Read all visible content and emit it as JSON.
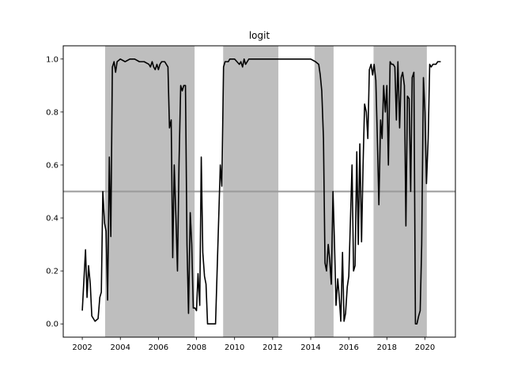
{
  "chart_data": {
    "type": "line",
    "title": "logit",
    "xlabel": "",
    "ylabel": "",
    "xlim": [
      2001.0,
      2021.6
    ],
    "ylim": [
      -0.05,
      1.05
    ],
    "x_ticks": [
      2002,
      2004,
      2006,
      2008,
      2010,
      2012,
      2014,
      2016,
      2018,
      2020
    ],
    "y_ticks": [
      0.0,
      0.2,
      0.4,
      0.6,
      0.8,
      1.0
    ],
    "y_tick_labels": [
      "0.0",
      "0.2",
      "0.4",
      "0.6",
      "0.8",
      "1.0"
    ],
    "threshold": 0.5,
    "threshold_color": "#999999",
    "line_color": "#000000",
    "shade_color": "#bebebe",
    "shaded_periods": [
      [
        2003.2,
        2007.9
      ],
      [
        2009.4,
        2012.3
      ],
      [
        2014.2,
        2015.2
      ],
      [
        2017.3,
        2020.1
      ]
    ],
    "series": [
      {
        "x": [
          2002.0,
          2002.17,
          2002.25,
          2002.33,
          2002.42,
          2002.5,
          2002.67,
          2002.83,
          2002.92,
          2003.0,
          2003.08,
          2003.17,
          2003.25,
          2003.33,
          2003.42,
          2003.5,
          2003.58,
          2003.67,
          2003.75,
          2003.83,
          2004.0,
          2004.25,
          2004.5,
          2004.75,
          2005.0,
          2005.25,
          2005.5,
          2005.58,
          2005.67,
          2005.75,
          2005.83,
          2005.92,
          2006.0,
          2006.08,
          2006.17,
          2006.33,
          2006.5,
          2006.58,
          2006.67,
          2006.75,
          2006.83,
          2006.92,
          2007.0,
          2007.08,
          2007.17,
          2007.25,
          2007.33,
          2007.42,
          2007.5,
          2007.58,
          2007.67,
          2007.75,
          2007.83,
          2007.92,
          2008.0,
          2008.08,
          2008.17,
          2008.25,
          2008.33,
          2008.42,
          2008.5,
          2008.58,
          2008.75,
          2009.0,
          2009.25,
          2009.33,
          2009.42,
          2009.5,
          2009.58,
          2009.67,
          2009.75,
          2010.0,
          2010.25,
          2010.33,
          2010.42,
          2010.5,
          2010.58,
          2010.75,
          2011.0,
          2011.5,
          2012.0,
          2012.5,
          2013.0,
          2013.5,
          2014.0,
          2014.25,
          2014.42,
          2014.5,
          2014.58,
          2014.67,
          2014.75,
          2014.83,
          2014.92,
          2015.0,
          2015.08,
          2015.17,
          2015.25,
          2015.33,
          2015.42,
          2015.5,
          2015.58,
          2015.67,
          2015.75,
          2015.83,
          2015.92,
          2016.0,
          2016.17,
          2016.25,
          2016.33,
          2016.42,
          2016.5,
          2016.58,
          2016.67,
          2016.75,
          2016.83,
          2016.92,
          2017.0,
          2017.08,
          2017.17,
          2017.25,
          2017.33,
          2017.42,
          2017.5,
          2017.58,
          2017.67,
          2017.75,
          2017.83,
          2017.92,
          2018.0,
          2018.08,
          2018.17,
          2018.25,
          2018.33,
          2018.42,
          2018.5,
          2018.58,
          2018.67,
          2018.75,
          2018.83,
          2018.92,
          2019.0,
          2019.08,
          2019.17,
          2019.25,
          2019.33,
          2019.42,
          2019.5,
          2019.58,
          2019.67,
          2019.75,
          2019.83,
          2019.92,
          2020.0,
          2020.08,
          2020.17,
          2020.25,
          2020.33,
          2020.42,
          2020.5,
          2020.58,
          2020.67,
          2020.75,
          2020.83
        ],
        "values": [
          0.05,
          0.28,
          0.1,
          0.22,
          0.15,
          0.03,
          0.01,
          0.02,
          0.1,
          0.12,
          0.5,
          0.38,
          0.35,
          0.09,
          0.63,
          0.33,
          0.97,
          0.99,
          0.95,
          0.99,
          1.0,
          0.99,
          1.0,
          1.0,
          0.99,
          0.99,
          0.98,
          0.97,
          0.99,
          0.97,
          0.96,
          0.98,
          0.96,
          0.98,
          0.99,
          0.99,
          0.97,
          0.74,
          0.77,
          0.25,
          0.6,
          0.4,
          0.2,
          0.6,
          0.9,
          0.88,
          0.9,
          0.9,
          0.3,
          0.04,
          0.42,
          0.3,
          0.06,
          0.06,
          0.05,
          0.19,
          0.07,
          0.63,
          0.27,
          0.18,
          0.15,
          0.0,
          0.0,
          0.0,
          0.6,
          0.52,
          0.97,
          0.99,
          0.99,
          0.99,
          1.0,
          1.0,
          0.98,
          0.99,
          0.97,
          1.0,
          0.98,
          1.0,
          1.0,
          1.0,
          1.0,
          1.0,
          1.0,
          1.0,
          1.0,
          0.99,
          0.98,
          0.94,
          0.88,
          0.7,
          0.23,
          0.2,
          0.3,
          0.24,
          0.15,
          0.5,
          0.3,
          0.07,
          0.17,
          0.1,
          0.01,
          0.27,
          0.01,
          0.04,
          0.14,
          0.18,
          0.6,
          0.2,
          0.22,
          0.65,
          0.3,
          0.68,
          0.31,
          0.6,
          0.83,
          0.8,
          0.7,
          0.96,
          0.98,
          0.94,
          0.98,
          0.92,
          0.7,
          0.45,
          0.77,
          0.7,
          0.9,
          0.8,
          0.9,
          0.6,
          0.99,
          0.98,
          0.98,
          0.97,
          0.77,
          0.99,
          0.74,
          0.93,
          0.95,
          0.9,
          0.37,
          0.86,
          0.85,
          0.5,
          0.93,
          0.95,
          0.0,
          0.0,
          0.03,
          0.05,
          0.3,
          0.93,
          0.8,
          0.53,
          0.7,
          0.98,
          0.97,
          0.98,
          0.98,
          0.98,
          0.99,
          0.99,
          0.99
        ]
      }
    ]
  }
}
